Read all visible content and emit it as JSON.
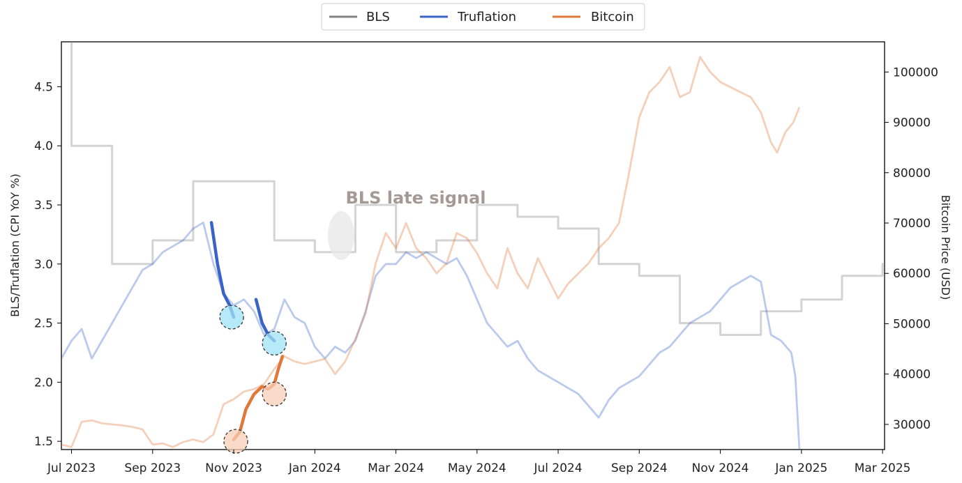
{
  "chart_data": {
    "type": "line",
    "title": "",
    "x_tick_labels": [
      "Jul 2023",
      "Sep 2023",
      "Nov 2023",
      "Jan 2024",
      "Mar 2024",
      "May 2024",
      "Jul 2024",
      "Sep 2024",
      "Nov 2024",
      "Jan 2025",
      "Mar 2025"
    ],
    "x_ticks": [
      0,
      2,
      4,
      6,
      8,
      10,
      12,
      14,
      16,
      18,
      20
    ],
    "xlim": [
      -0.25,
      20.05
    ],
    "left_axis": {
      "label": "BLS/Truflation (CPI YoY %)",
      "ylim": [
        1.43,
        4.88
      ],
      "ticks": [
        1.5,
        2.0,
        2.5,
        3.0,
        3.5,
        4.0,
        4.5
      ]
    },
    "right_axis": {
      "label": "Bitcoin Price (USD)",
      "ylim": [
        25000,
        106000
      ],
      "ticks": [
        30000,
        40000,
        50000,
        60000,
        70000,
        80000,
        90000,
        100000
      ]
    },
    "legend": {
      "position": "top-center",
      "entries": [
        "BLS",
        "Truflation",
        "Bitcoin"
      ]
    },
    "colors": {
      "bls": "#808080",
      "truflation": "#3a63c8",
      "bitcoin": "#e0783a",
      "circle_blue": "#9fe3f7",
      "circle_orange": "#f8cdb5"
    },
    "annotation": {
      "text": "BLS late signal",
      "x": 6.0,
      "y": 3.55
    },
    "series": [
      {
        "name": "BLS",
        "axis": "left",
        "points": [
          [
            -0.25,
            4.9
          ],
          [
            0.0,
            4.9
          ],
          [
            0.0,
            4.0
          ],
          [
            1.0,
            4.0
          ],
          [
            1.0,
            3.0
          ],
          [
            2.0,
            3.0
          ],
          [
            2.0,
            3.2
          ],
          [
            3.0,
            3.2
          ],
          [
            3.0,
            3.7
          ],
          [
            5.0,
            3.7
          ],
          [
            5.0,
            3.2
          ],
          [
            6.0,
            3.2
          ],
          [
            6.0,
            3.1
          ],
          [
            7.0,
            3.1
          ],
          [
            7.0,
            3.5
          ],
          [
            8.0,
            3.5
          ],
          [
            8.0,
            3.1
          ],
          [
            9.0,
            3.1
          ],
          [
            9.0,
            3.2
          ],
          [
            10.0,
            3.2
          ],
          [
            10.0,
            3.5
          ],
          [
            11.0,
            3.5
          ],
          [
            11.0,
            3.4
          ],
          [
            12.0,
            3.4
          ],
          [
            12.0,
            3.3
          ],
          [
            13.0,
            3.3
          ],
          [
            13.0,
            3.0
          ],
          [
            14.0,
            3.0
          ],
          [
            14.0,
            2.9
          ],
          [
            15.0,
            2.9
          ],
          [
            15.0,
            2.5
          ],
          [
            16.0,
            2.5
          ],
          [
            16.0,
            2.4
          ],
          [
            17.0,
            2.4
          ],
          [
            17.0,
            2.6
          ],
          [
            18.0,
            2.6
          ],
          [
            18.0,
            2.7
          ],
          [
            19.0,
            2.7
          ],
          [
            19.0,
            2.9
          ],
          [
            20.0,
            2.9
          ],
          [
            20.0,
            3.0
          ],
          [
            20.05,
            3.0
          ]
        ]
      },
      {
        "name": "Truflation",
        "axis": "left",
        "points": [
          [
            -0.25,
            2.2
          ],
          [
            0.0,
            2.35
          ],
          [
            0.25,
            2.45
          ],
          [
            0.5,
            2.2
          ],
          [
            0.75,
            2.35
          ],
          [
            1.0,
            2.5
          ],
          [
            1.25,
            2.65
          ],
          [
            1.5,
            2.8
          ],
          [
            1.75,
            2.95
          ],
          [
            2.0,
            3.0
          ],
          [
            2.25,
            3.1
          ],
          [
            2.5,
            3.15
          ],
          [
            2.75,
            3.2
          ],
          [
            3.0,
            3.3
          ],
          [
            3.25,
            3.35
          ],
          [
            3.5,
            3.0
          ],
          [
            3.75,
            2.75
          ],
          [
            4.0,
            2.65
          ],
          [
            4.25,
            2.7
          ],
          [
            4.5,
            2.6
          ],
          [
            4.75,
            2.4
          ],
          [
            5.0,
            2.45
          ],
          [
            5.25,
            2.7
          ],
          [
            5.5,
            2.55
          ],
          [
            5.75,
            2.5
          ],
          [
            6.0,
            2.3
          ],
          [
            6.25,
            2.2
          ],
          [
            6.5,
            2.3
          ],
          [
            6.75,
            2.25
          ],
          [
            7.0,
            2.35
          ],
          [
            7.25,
            2.6
          ],
          [
            7.5,
            2.9
          ],
          [
            7.75,
            3.0
          ],
          [
            8.0,
            3.0
          ],
          [
            8.25,
            3.1
          ],
          [
            8.5,
            3.05
          ],
          [
            8.75,
            3.1
          ],
          [
            9.0,
            3.05
          ],
          [
            9.25,
            3.0
          ],
          [
            9.5,
            3.05
          ],
          [
            9.75,
            2.9
          ],
          [
            10.0,
            2.7
          ],
          [
            10.25,
            2.5
          ],
          [
            10.5,
            2.4
          ],
          [
            10.75,
            2.3
          ],
          [
            11.0,
            2.35
          ],
          [
            11.25,
            2.2
          ],
          [
            11.5,
            2.1
          ],
          [
            11.75,
            2.05
          ],
          [
            12.0,
            2.0
          ],
          [
            12.25,
            1.95
          ],
          [
            12.5,
            1.9
          ],
          [
            12.75,
            1.8
          ],
          [
            13.0,
            1.7
          ],
          [
            13.25,
            1.85
          ],
          [
            13.5,
            1.95
          ],
          [
            13.75,
            2.0
          ],
          [
            14.0,
            2.05
          ],
          [
            14.25,
            2.15
          ],
          [
            14.5,
            2.25
          ],
          [
            14.75,
            2.3
          ],
          [
            15.0,
            2.4
          ],
          [
            15.25,
            2.5
          ],
          [
            15.5,
            2.55
          ],
          [
            15.75,
            2.6
          ],
          [
            16.0,
            2.7
          ],
          [
            16.25,
            2.8
          ],
          [
            16.5,
            2.85
          ],
          [
            16.75,
            2.9
          ],
          [
            17.0,
            2.85
          ],
          [
            17.25,
            2.4
          ],
          [
            17.5,
            2.35
          ],
          [
            17.75,
            2.25
          ],
          [
            17.85,
            2.05
          ],
          [
            17.95,
            1.43
          ]
        ]
      },
      {
        "name": "Bitcoin",
        "axis": "right",
        "points": [
          [
            -0.25,
            26000
          ],
          [
            0.0,
            25500
          ],
          [
            0.25,
            30500
          ],
          [
            0.5,
            30800
          ],
          [
            0.75,
            30200
          ],
          [
            1.0,
            30000
          ],
          [
            1.25,
            29800
          ],
          [
            1.5,
            29500
          ],
          [
            1.75,
            29000
          ],
          [
            2.0,
            26000
          ],
          [
            2.25,
            26200
          ],
          [
            2.5,
            25500
          ],
          [
            2.75,
            26500
          ],
          [
            3.0,
            27000
          ],
          [
            3.25,
            26500
          ],
          [
            3.5,
            28000
          ],
          [
            3.75,
            34000
          ],
          [
            4.0,
            35000
          ],
          [
            4.25,
            36500
          ],
          [
            4.5,
            37000
          ],
          [
            4.75,
            38000
          ],
          [
            5.0,
            41000
          ],
          [
            5.25,
            43500
          ],
          [
            5.5,
            42500
          ],
          [
            5.75,
            42000
          ],
          [
            6.0,
            42500
          ],
          [
            6.25,
            43000
          ],
          [
            6.5,
            40000
          ],
          [
            6.75,
            42500
          ],
          [
            7.0,
            47000
          ],
          [
            7.25,
            52000
          ],
          [
            7.5,
            62000
          ],
          [
            7.75,
            68000
          ],
          [
            8.0,
            65000
          ],
          [
            8.25,
            70000
          ],
          [
            8.5,
            65000
          ],
          [
            8.75,
            63000
          ],
          [
            9.0,
            60000
          ],
          [
            9.25,
            62000
          ],
          [
            9.5,
            68000
          ],
          [
            9.75,
            67000
          ],
          [
            10.0,
            64000
          ],
          [
            10.25,
            60000
          ],
          [
            10.5,
            57000
          ],
          [
            10.75,
            65000
          ],
          [
            11.0,
            60000
          ],
          [
            11.25,
            57000
          ],
          [
            11.5,
            63000
          ],
          [
            11.75,
            59000
          ],
          [
            12.0,
            55000
          ],
          [
            12.25,
            58000
          ],
          [
            12.5,
            60000
          ],
          [
            12.75,
            62000
          ],
          [
            13.0,
            65000
          ],
          [
            13.25,
            67000
          ],
          [
            13.5,
            70000
          ],
          [
            13.75,
            80000
          ],
          [
            14.0,
            91000
          ],
          [
            14.25,
            96000
          ],
          [
            14.5,
            98000
          ],
          [
            14.75,
            101000
          ],
          [
            15.0,
            95000
          ],
          [
            15.25,
            96000
          ],
          [
            15.5,
            103000
          ],
          [
            15.75,
            100000
          ],
          [
            16.0,
            98000
          ],
          [
            16.25,
            97000
          ],
          [
            16.5,
            96000
          ],
          [
            16.75,
            95000
          ],
          [
            17.0,
            92000
          ],
          [
            17.25,
            86000
          ],
          [
            17.4,
            84000
          ],
          [
            17.6,
            88000
          ],
          [
            17.8,
            90000
          ],
          [
            17.95,
            93000
          ]
        ]
      }
    ],
    "highlights": [
      {
        "series": "Truflation",
        "axis": "left",
        "points": [
          [
            3.45,
            3.35
          ],
          [
            3.6,
            3.0
          ],
          [
            3.75,
            2.75
          ],
          [
            3.9,
            2.65
          ],
          [
            4.0,
            2.55
          ]
        ]
      },
      {
        "series": "Truflation",
        "axis": "left",
        "points": [
          [
            4.55,
            2.7
          ],
          [
            4.7,
            2.5
          ],
          [
            4.85,
            2.4
          ],
          [
            5.0,
            2.35
          ]
        ]
      },
      {
        "series": "Bitcoin",
        "axis": "right",
        "points": [
          [
            4.0,
            27000
          ],
          [
            4.15,
            28500
          ],
          [
            4.3,
            33000
          ],
          [
            4.5,
            36000
          ],
          [
            4.7,
            37500
          ],
          [
            4.85,
            37000
          ],
          [
            5.0,
            38000
          ],
          [
            5.1,
            41000
          ],
          [
            5.2,
            43500
          ]
        ]
      }
    ],
    "circles": [
      {
        "name": "truflation-dip-1",
        "axis": "left",
        "x": 3.95,
        "y": 2.55,
        "color": "circle_blue"
      },
      {
        "name": "truflation-dip-2",
        "axis": "left",
        "x": 5.0,
        "y": 2.33,
        "color": "circle_blue"
      },
      {
        "name": "bitcoin-rise-1",
        "axis": "left",
        "x": 4.05,
        "y": 1.5,
        "color": "circle_orange"
      },
      {
        "name": "bitcoin-rise-2",
        "axis": "left",
        "x": 5.0,
        "y": 1.9,
        "color": "circle_orange"
      }
    ]
  }
}
